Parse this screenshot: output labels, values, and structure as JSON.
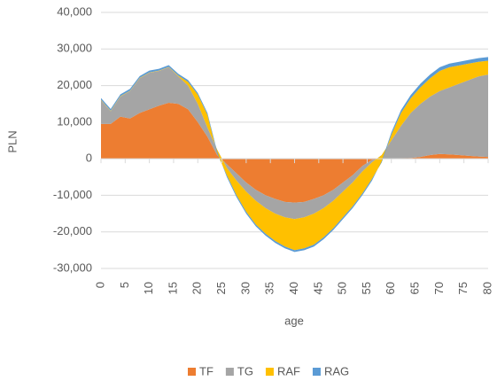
{
  "chart_data": {
    "type": "stacked_area",
    "y_label": "PLN",
    "x_label": "age",
    "x": [
      0,
      2,
      4,
      6,
      8,
      10,
      12,
      14,
      16,
      18,
      20,
      22,
      24,
      26,
      28,
      30,
      32,
      34,
      36,
      38,
      40,
      42,
      44,
      46,
      48,
      50,
      52,
      54,
      56,
      58,
      60,
      62,
      64,
      66,
      68,
      70,
      72,
      74,
      76,
      78,
      80
    ],
    "series": [
      {
        "name": "TF",
        "color": "#ED7D31",
        "values": [
          9500,
          9500,
          11500,
          11000,
          12500,
          13500,
          14500,
          15300,
          15000,
          13500,
          10000,
          6000,
          1000,
          -1500,
          -4000,
          -6500,
          -8500,
          -10000,
          -11000,
          -11800,
          -12000,
          -11800,
          -11000,
          -10000,
          -8500,
          -6500,
          -4500,
          -2000,
          -300,
          0,
          0,
          100,
          200,
          500,
          1000,
          1300,
          1200,
          1000,
          800,
          600,
          500
        ]
      },
      {
        "name": "TG",
        "color": "#A5A5A5",
        "values": [
          6500,
          3500,
          5500,
          7500,
          9500,
          10000,
          9500,
          9700,
          7500,
          6500,
          5000,
          2500,
          1500,
          -1000,
          -2000,
          -2500,
          -3000,
          -3500,
          -4000,
          -4200,
          -4500,
          -4200,
          -4000,
          -3500,
          -3000,
          -2500,
          -2000,
          -1500,
          -700,
          1000,
          5000,
          8900,
          12300,
          14500,
          16000,
          17200,
          18300,
          19500,
          20700,
          21900,
          22500
        ]
      },
      {
        "name": "RAF",
        "color": "#FFC000",
        "values": [
          100,
          100,
          100,
          100,
          100,
          100,
          100,
          100,
          200,
          1000,
          2500,
          3500,
          -1000,
          -2000,
          -4000,
          -5500,
          -6500,
          -7000,
          -7500,
          -8000,
          -8500,
          -8500,
          -8500,
          -8000,
          -7500,
          -7000,
          -6500,
          -6000,
          -4500,
          -2000,
          1500,
          3500,
          4000,
          4500,
          5000,
          5500,
          5500,
          5000,
          4500,
          4000,
          3800
        ]
      },
      {
        "name": "RAG",
        "color": "#5B9BD5",
        "values": [
          500,
          500,
          500,
          500,
          500,
          500,
          500,
          500,
          500,
          500,
          500,
          500,
          500,
          -500,
          -500,
          -500,
          -500,
          -500,
          -500,
          -500,
          -500,
          -500,
          -500,
          -500,
          -500,
          -500,
          -500,
          -500,
          -500,
          300,
          700,
          800,
          900,
          1000,
          1000,
          1000,
          1000,
          1000,
          1000,
          1000,
          1000
        ]
      }
    ],
    "xlim": [
      0,
      80
    ],
    "xticks": [
      0,
      5,
      10,
      15,
      20,
      25,
      30,
      35,
      40,
      45,
      50,
      55,
      60,
      65,
      70,
      75,
      80
    ],
    "ylim": [
      -30000,
      40000
    ],
    "yticks": [
      {
        "value": -30000,
        "label": "-30,000"
      },
      {
        "value": -20000,
        "label": "-20,000"
      },
      {
        "value": -10000,
        "label": "-10,000"
      },
      0,
      {
        "value": 10000,
        "label": "10,000"
      },
      {
        "value": 20000,
        "label": "20,000"
      },
      {
        "value": 30000,
        "label": "30,000"
      },
      {
        "value": 40000,
        "label": "40,000"
      }
    ],
    "grid": true,
    "legend": "bottom"
  }
}
